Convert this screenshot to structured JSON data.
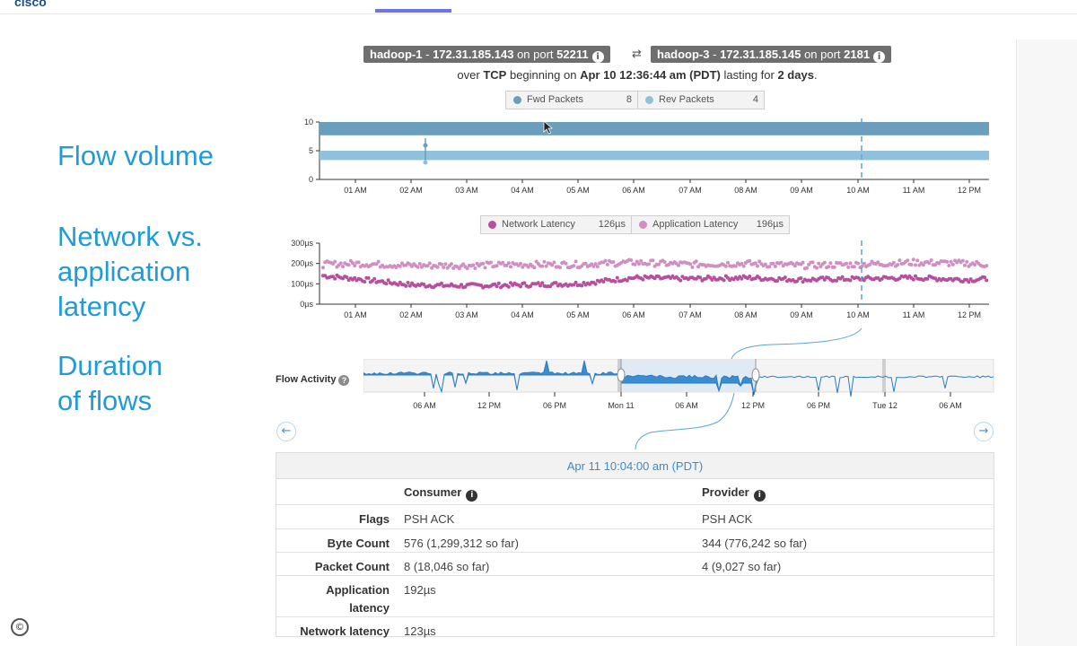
{
  "header": {
    "logo_fragment": "cisco"
  },
  "side_labels": {
    "flow_volume": "Flow volume",
    "latency": "Network vs.\napplication\nlatency",
    "duration": "Duration\nof flows"
  },
  "connection": {
    "source": {
      "host": "hadoop-1",
      "ip": "172.31.185.143",
      "on_port_text": "on port",
      "port": "52211"
    },
    "destination": {
      "host": "hadoop-3",
      "ip": "172.31.185.145",
      "on_port_text": "on port",
      "port": "2181"
    },
    "swap_icon": "swap-arrows-icon",
    "info_icon": "info-icon",
    "summary": {
      "prefix": "over",
      "protocol": "TCP",
      "middle": "beginning on",
      "start": "Apr 10 12:36:44 am (PDT)",
      "lasting": "lasting for",
      "duration": "2 days",
      "suffix": "."
    }
  },
  "packets_legend": {
    "fwd": {
      "label": "Fwd Packets",
      "value": "8",
      "color": "#6b9dbc"
    },
    "rev": {
      "label": "Rev Packets",
      "value": "4",
      "color": "#8fc1dd"
    }
  },
  "latency_legend": {
    "network": {
      "label": "Network Latency",
      "value": "126µs",
      "color": "#b64f9e"
    },
    "application": {
      "label": "Application Latency",
      "value": "196µs",
      "color": "#d08ec3"
    }
  },
  "time_ticks": [
    "01 AM",
    "02 AM",
    "03 AM",
    "04 AM",
    "05 AM",
    "06 AM",
    "07 AM",
    "08 AM",
    "09 AM",
    "10 AM",
    "11 AM",
    "12 PM"
  ],
  "chart_data": [
    {
      "type": "area",
      "title": "",
      "x": [
        "12:36 AM",
        "01 AM",
        "02 AM",
        "03 AM",
        "04 AM",
        "05 AM",
        "06 AM",
        "07 AM",
        "08 AM",
        "09 AM",
        "10 AM",
        "11 AM",
        "12 PM",
        "12:40 PM"
      ],
      "series": [
        {
          "name": "Fwd Packets",
          "values": [
            8,
            8,
            8,
            8,
            8,
            8,
            8,
            8,
            8,
            8,
            8,
            8,
            8,
            8
          ]
        },
        {
          "name": "Rev Packets",
          "values": [
            4,
            4,
            4,
            4,
            4,
            4,
            4,
            4,
            4,
            4,
            4,
            4,
            4,
            4
          ]
        }
      ],
      "ylim": [
        0,
        10
      ],
      "yticks": [
        "0",
        "5",
        "10"
      ],
      "highlight": "10:04 AM"
    },
    {
      "type": "scatter",
      "title": "",
      "x": [
        "12:36 AM",
        "01 AM",
        "02 AM",
        "03 AM",
        "04 AM",
        "05 AM",
        "06 AM",
        "07 AM",
        "08 AM",
        "09 AM",
        "10 AM",
        "11 AM",
        "12 PM",
        "12:40 PM"
      ],
      "series": [
        {
          "name": "Network Latency",
          "values": [
            140,
            125,
            95,
            90,
            95,
            100,
            130,
            125,
            130,
            120,
            125,
            130,
            120,
            125
          ]
        },
        {
          "name": "Application Latency",
          "values": [
            195,
            200,
            190,
            190,
            195,
            195,
            205,
            195,
            200,
            190,
            195,
            205,
            200,
            195
          ]
        }
      ],
      "ylim": [
        0,
        300
      ],
      "yticks": [
        "0µs",
        "100µs",
        "200µs",
        "300µs"
      ],
      "highlight": "10:04 AM"
    },
    {
      "type": "line",
      "title": "Flow Activity",
      "x_ticks": [
        "06 AM",
        "12 PM",
        "06 PM",
        "Mon 11",
        "06 AM",
        "12 PM",
        "06 PM",
        "Tue 12",
        "06 AM"
      ],
      "selection": [
        "Mon 11",
        "12 PM"
      ],
      "highlight": "Apr 11 10:04:00 am (PDT)"
    }
  ],
  "flow_activity": {
    "label": "Flow Activity",
    "help_icon": "question-icon"
  },
  "navigation": {
    "prev_icon": "arrow-left-icon",
    "next_icon": "arrow-right-icon",
    "prev_glyph": "←",
    "next_glyph": "→"
  },
  "detail": {
    "timestamp": "Apr 11 10:04:00 am (PDT)",
    "columns": {
      "consumer": "Consumer",
      "provider": "Provider"
    },
    "rows": [
      {
        "key": "Flags",
        "consumer": "PSH ACK",
        "provider": "PSH ACK"
      },
      {
        "key": "Byte Count",
        "consumer": "576 (1,299,312 so far)",
        "provider": "344 (776,242 so far)"
      },
      {
        "key": "Packet Count",
        "consumer": "8 (18,046 so far)",
        "provider": "4 (9,027 so far)"
      },
      {
        "key": "Application\nlatency",
        "consumer": "192µs",
        "provider": ""
      },
      {
        "key": "Network latency",
        "consumer": "123µs",
        "provider": ""
      }
    ]
  },
  "copyright_icon": "copyright-icon",
  "copyright_glyph": "©",
  "colors": {
    "accent": "#1f9bd7",
    "fwd": "#6b9dbc",
    "rev": "#8fc1dd",
    "net_latency": "#b64f9e",
    "app_latency": "#d08ec3",
    "flow": "#3a8dd0"
  }
}
